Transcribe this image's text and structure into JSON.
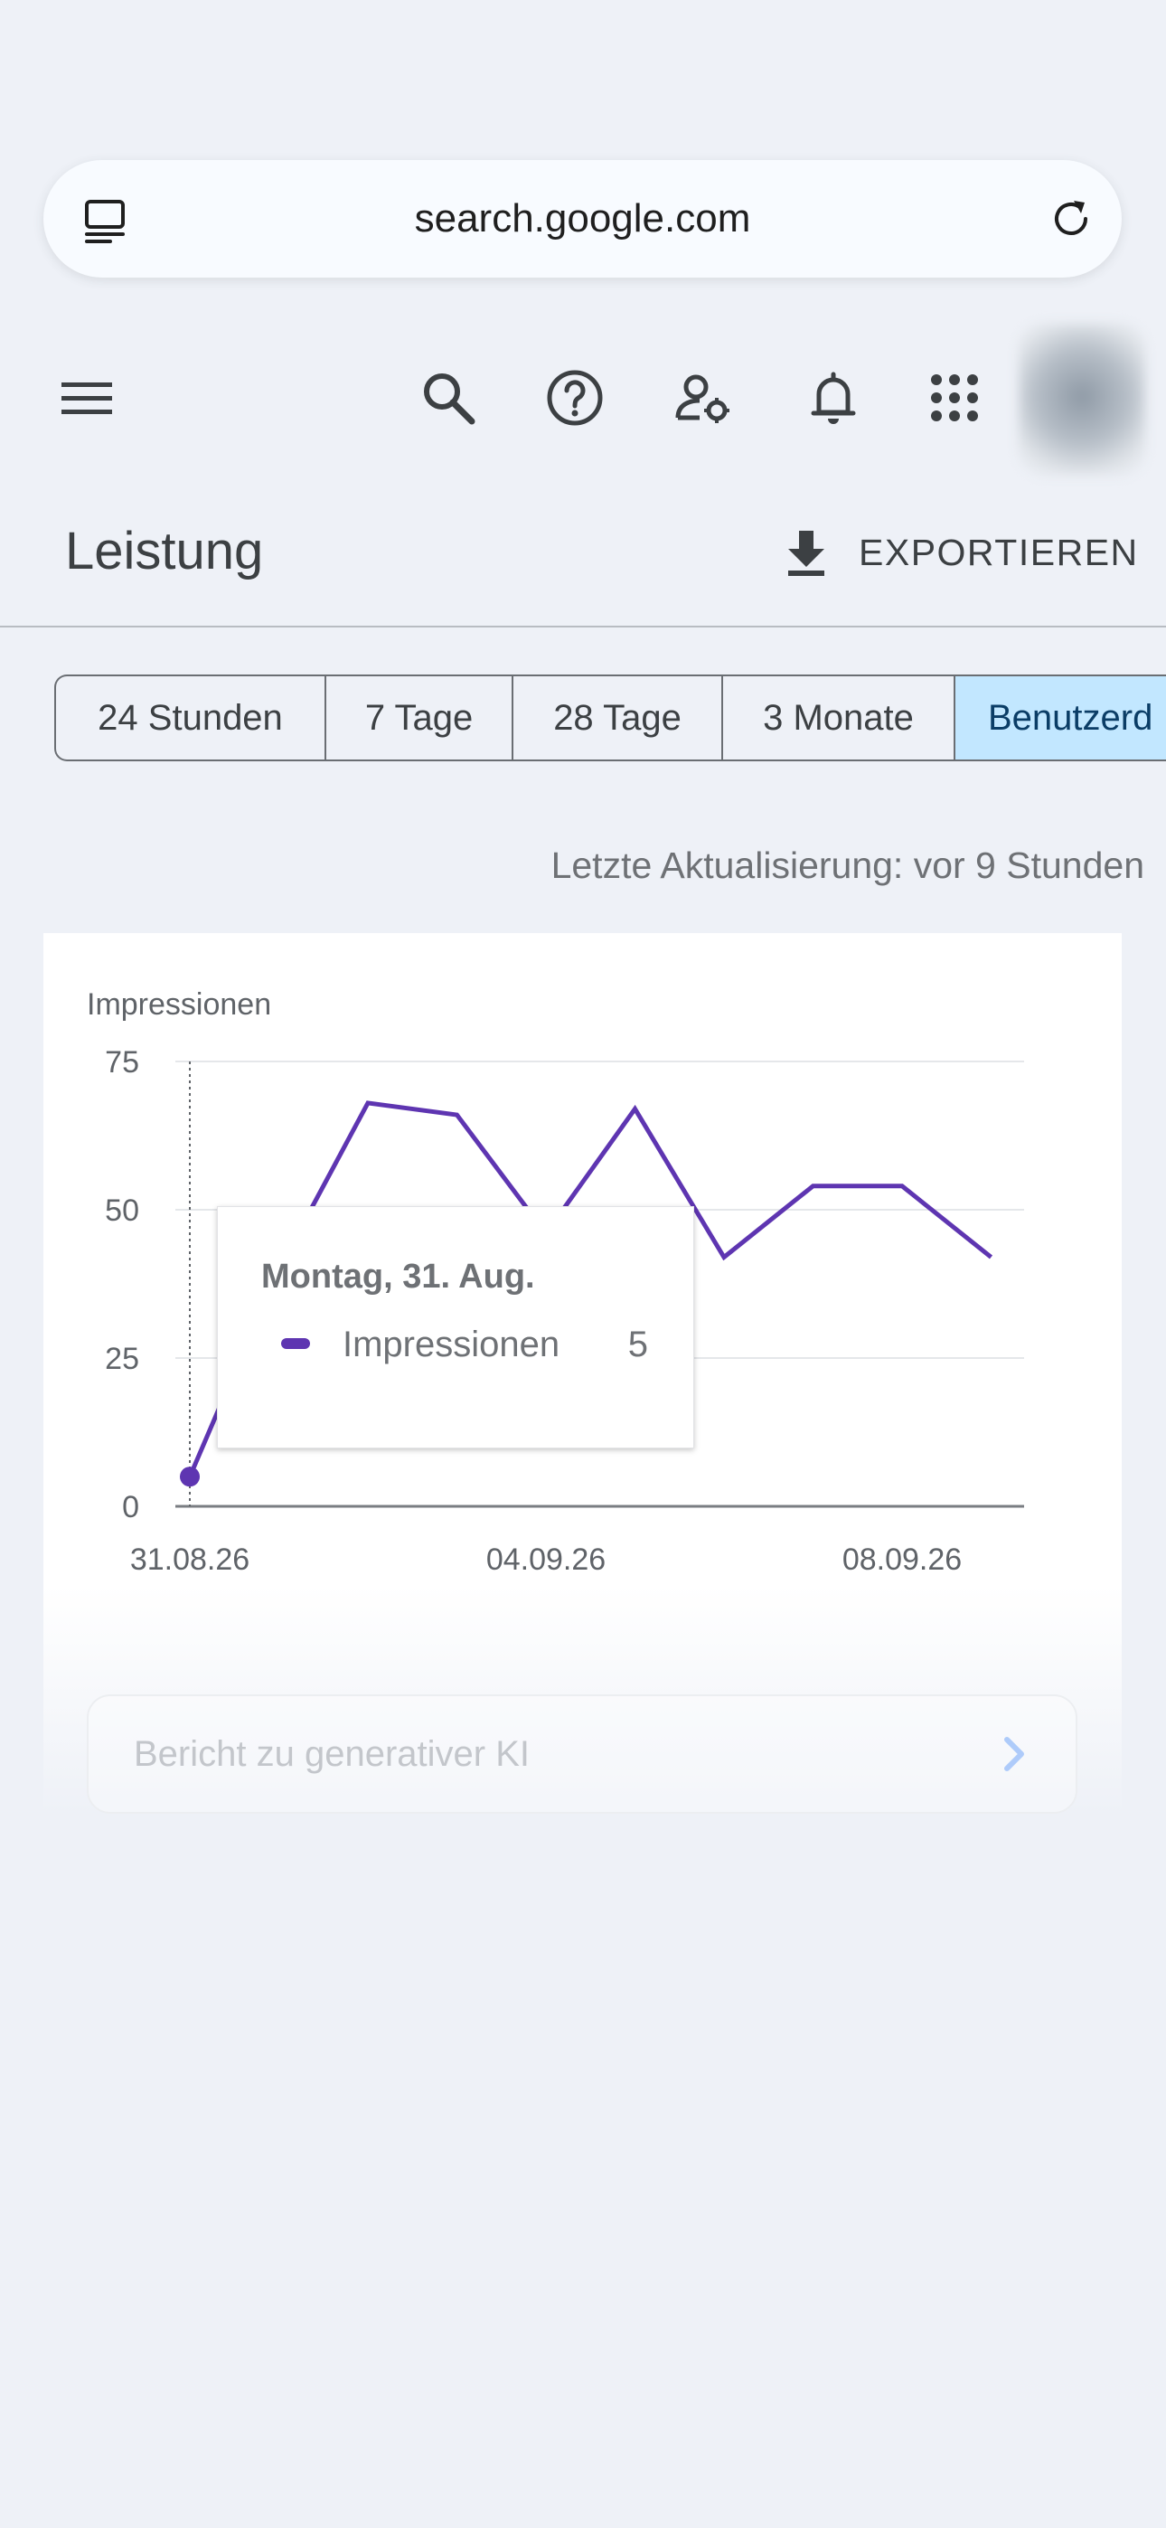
{
  "browser": {
    "url": "search.google.com",
    "tabs_icon": "tabs-icon",
    "reload_icon": "reload-icon"
  },
  "toolbar": {
    "icons": [
      "menu-icon",
      "search-icon",
      "help-icon",
      "account-settings-icon",
      "notifications-icon",
      "apps-grid-icon"
    ],
    "avatar": "avatar"
  },
  "header": {
    "title": "Leistung",
    "export_label": "EXPORTIEREN",
    "export_icon": "download-icon"
  },
  "date_range": {
    "chips": [
      "24 Stunden",
      "7 Tage",
      "28 Tage",
      "3 Monate",
      "Benutzerd"
    ],
    "selected": "Benutzerd"
  },
  "last_update": "Letzte Aktualisierung: vor 9 Stunden",
  "chart_data": {
    "type": "line",
    "ylabel": "Impressionen",
    "ylim": [
      0,
      75
    ],
    "yticks": [
      "0",
      "25",
      "50",
      "75"
    ],
    "xticks": [
      "31.08.26",
      "04.09.26",
      "08.09.26"
    ],
    "x": [
      "31.08.26",
      "01.09.26",
      "02.09.26",
      "03.09.26",
      "04.09.26",
      "05.09.26",
      "06.09.26",
      "07.09.26",
      "08.09.26",
      "09.09.26"
    ],
    "series": [
      {
        "name": "Impressionen",
        "color": "#5e35b1",
        "values": [
          5,
          40,
          68,
          66,
          46,
          67,
          42,
          54,
          54,
          42
        ]
      }
    ],
    "grid": true,
    "highlight_index": 0
  },
  "tooltip": {
    "date": "Montag, 31. Aug.",
    "series_name": "Impressionen",
    "value": "5",
    "color": "#5e35b1"
  },
  "generative_ai_report": {
    "label": "Bericht zu generativer KI",
    "chevron_icon": "chevron-right-icon"
  }
}
